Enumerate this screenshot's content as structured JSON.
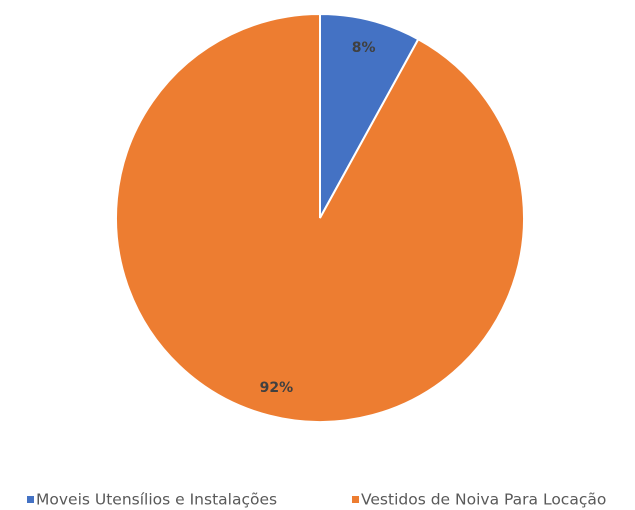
{
  "chart_data": {
    "type": "pie",
    "categories": [
      "Moveis Utensílios e Instalações",
      "Vestidos de Noiva Para Locação"
    ],
    "values": [
      8,
      92
    ],
    "value_labels": [
      "8%",
      "92%"
    ],
    "colors": [
      "#4472c4",
      "#ed7d31"
    ],
    "legend": "bottom"
  }
}
